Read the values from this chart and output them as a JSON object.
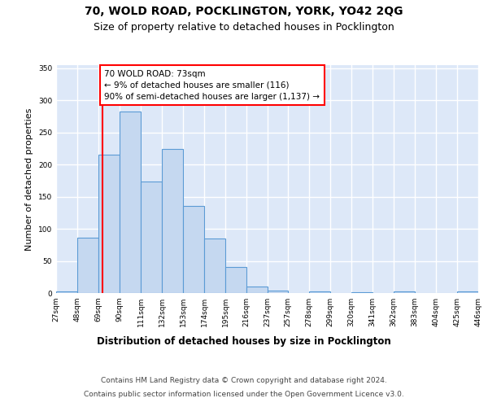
{
  "title1": "70, WOLD ROAD, POCKLINGTON, YORK, YO42 2QG",
  "title2": "Size of property relative to detached houses in Pocklington",
  "xlabel": "Distribution of detached houses by size in Pocklington",
  "ylabel": "Number of detached properties",
  "footer1": "Contains HM Land Registry data © Crown copyright and database right 2024.",
  "footer2": "Contains public sector information licensed under the Open Government Licence v3.0.",
  "bar_values": [
    3,
    86,
    216,
    283,
    174,
    225,
    136,
    85,
    40,
    10,
    4,
    0,
    3,
    0,
    1,
    0,
    2,
    0,
    0,
    2
  ],
  "bin_edges": [
    27,
    48,
    69,
    90,
    111,
    132,
    153,
    174,
    195,
    216,
    237,
    257,
    278,
    299,
    320,
    341,
    362,
    383,
    404,
    425,
    446
  ],
  "bar_color": "#c5d8f0",
  "bar_edge_color": "#5b9bd5",
  "vline_x": 73,
  "annotation_text": "70 WOLD ROAD: 73sqm\n← 9% of detached houses are smaller (116)\n90% of semi-detached houses are larger (1,137) →",
  "vline_color": "red",
  "ylim": [
    0,
    355
  ],
  "yticks": [
    0,
    50,
    100,
    150,
    200,
    250,
    300,
    350
  ],
  "background_color": "#dde8f8",
  "grid_color": "#ffffff",
  "title1_fontsize": 10,
  "title2_fontsize": 9,
  "ylabel_fontsize": 8,
  "xlabel_fontsize": 8.5,
  "tick_fontsize": 6.5,
  "footer_fontsize": 6.5,
  "ann_fontsize": 7.5
}
